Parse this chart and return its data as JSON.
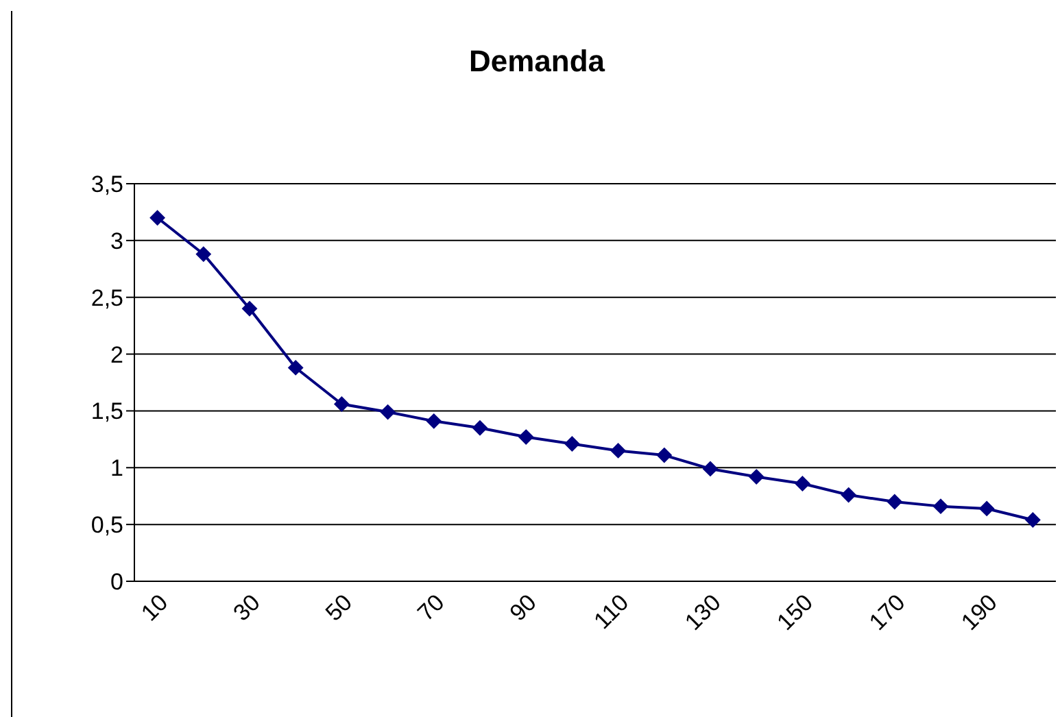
{
  "chart_data": {
    "type": "line",
    "title": "Demanda",
    "categories": [
      "10",
      null,
      "30",
      null,
      "50",
      null,
      "70",
      null,
      "90",
      null,
      "110",
      null,
      "130",
      null,
      "150",
      null,
      "170",
      null,
      "190",
      null
    ],
    "series": [
      {
        "color": "#000080",
        "values": [
          3.2,
          2.88,
          2.4,
          1.88,
          1.56,
          1.49,
          1.41,
          1.35,
          1.27,
          1.21,
          1.15,
          1.11,
          0.99,
          0.92,
          0.86,
          0.76,
          0.7,
          0.66,
          0.64,
          0.54
        ]
      }
    ],
    "ylim": [
      0,
      3.5
    ],
    "yticks": [
      0,
      {
        "value": 0.5,
        "label": "0,5"
      },
      1,
      {
        "value": 1.5,
        "label": "1,5"
      },
      2,
      {
        "value": 2.5,
        "label": "2,5"
      },
      3,
      {
        "value": 3.5,
        "label": "3,5"
      }
    ],
    "grid": "y",
    "legend": false,
    "marker": "diamond",
    "line_style": "solid"
  }
}
